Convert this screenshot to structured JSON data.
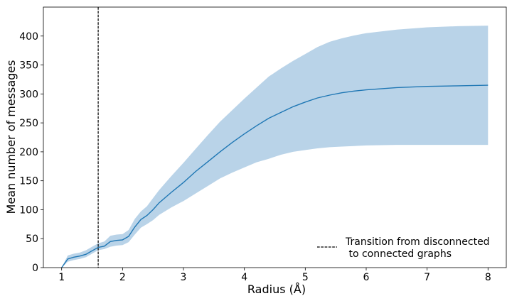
{
  "chart_data": {
    "type": "line",
    "title": "",
    "xlabel": "Radius (Å)",
    "ylabel": "Mean number of messages",
    "xlim": [
      0.7,
      8.3
    ],
    "ylim": [
      0,
      450
    ],
    "x_ticks": [
      1,
      2,
      3,
      4,
      5,
      6,
      7,
      8
    ],
    "y_ticks": [
      0,
      50,
      100,
      150,
      200,
      250,
      300,
      350,
      400
    ],
    "grid": false,
    "colors": {
      "line": "#1f77b4",
      "band": "#b9d3e8",
      "vline": "#000000"
    },
    "series": [
      {
        "x": [
          1.0,
          1.1,
          1.2,
          1.3,
          1.4,
          1.5,
          1.6,
          1.7,
          1.8,
          1.9,
          2.0,
          2.1,
          2.2,
          2.3,
          2.4,
          2.5,
          2.6,
          2.8,
          3.0,
          3.2,
          3.4,
          3.6,
          3.8,
          4.0,
          4.2,
          4.4,
          4.6,
          4.8,
          5.0,
          5.2,
          5.4,
          5.6,
          5.8,
          6.0,
          6.5,
          7.0,
          7.5,
          8.0
        ],
        "y": [
          0,
          15,
          18,
          20,
          23,
          29,
          35,
          37,
          45,
          47,
          48,
          54,
          70,
          83,
          90,
          100,
          112,
          130,
          147,
          166,
          183,
          200,
          216,
          231,
          245,
          258,
          268,
          278,
          286,
          293,
          298,
          302,
          305,
          307,
          311,
          313,
          314,
          315
        ],
        "lower": [
          0,
          10,
          13,
          15,
          18,
          24,
          30,
          32,
          36,
          38,
          39,
          44,
          57,
          69,
          75,
          82,
          91,
          104,
          115,
          128,
          141,
          154,
          164,
          173,
          182,
          188,
          195,
          200,
          203,
          206,
          208,
          209,
          210,
          211,
          212,
          212,
          212,
          212
        ],
        "upper": [
          0,
          21,
          24,
          26,
          30,
          36,
          42,
          45,
          55,
          57,
          58,
          65,
          84,
          97,
          106,
          120,
          134,
          158,
          181,
          205,
          229,
          252,
          272,
          292,
          311,
          330,
          344,
          357,
          369,
          381,
          390,
          396,
          401,
          405,
          411,
          415,
          417,
          418
        ]
      }
    ],
    "vline": {
      "x": 1.6,
      "style": "dashed"
    },
    "legend": {
      "position": "lower-right",
      "label": "Transition from disconnected\n to connected graphs"
    }
  }
}
